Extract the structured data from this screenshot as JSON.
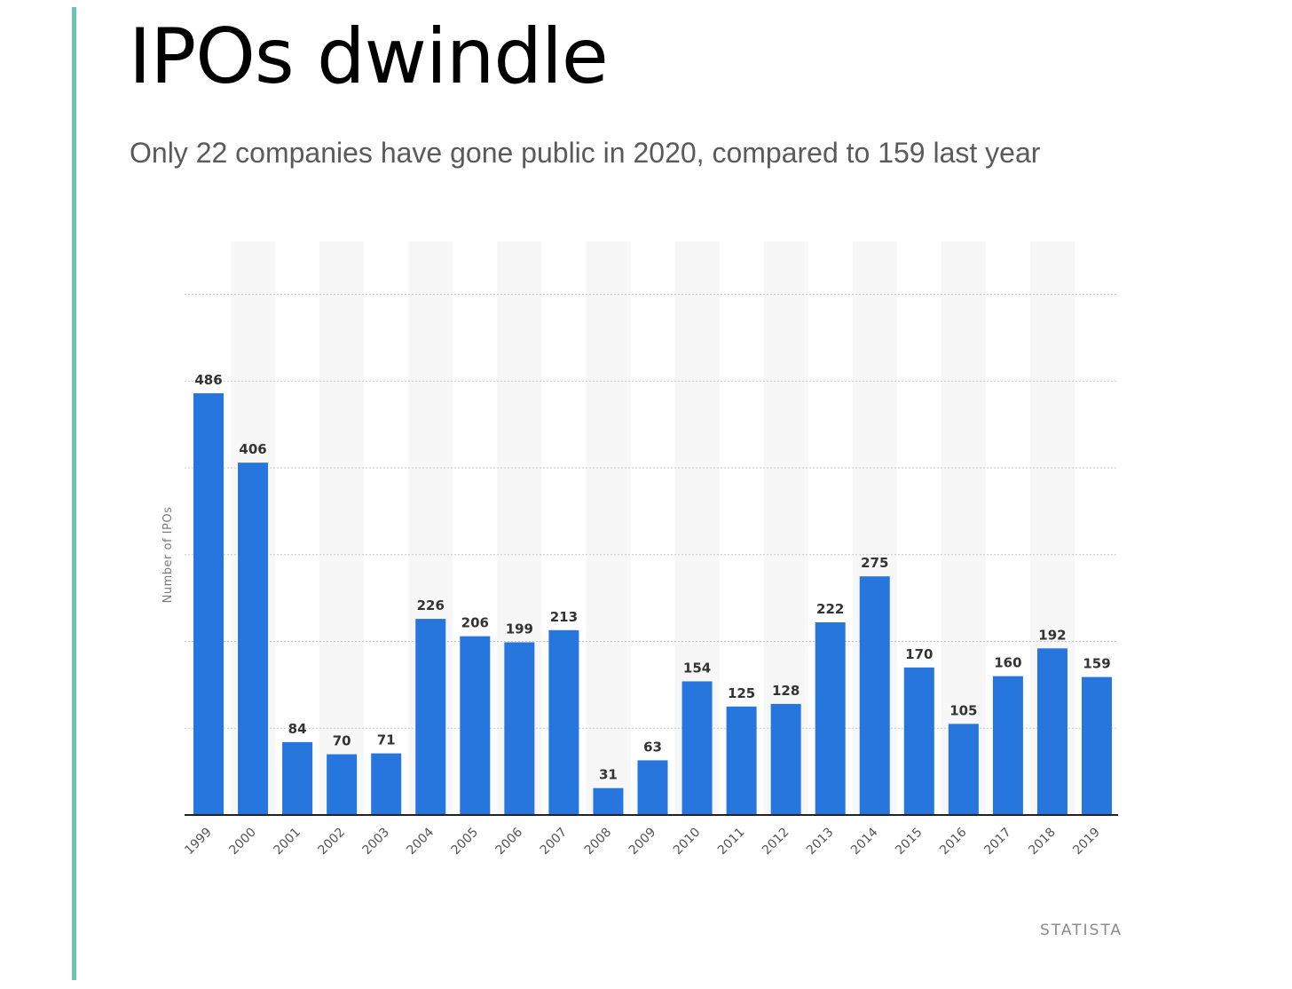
{
  "title": "IPOs dwindle",
  "subtitle": "Only 22 companies have gone public in 2020, compared to 159 last year",
  "source": "STATISTA",
  "colors": {
    "accent": "#6cc5b0",
    "bar": "#2776dd",
    "band": "#f7f7f7",
    "grid": "#c8c8c8",
    "axis": "#222222",
    "label": "#333333"
  },
  "chart_data": {
    "type": "bar",
    "categories": [
      "1999",
      "2000",
      "2001",
      "2002",
      "2003",
      "2004",
      "2005",
      "2006",
      "2007",
      "2008",
      "2009",
      "2010",
      "2011",
      "2012",
      "2013",
      "2014",
      "2015",
      "2016",
      "2017",
      "2018",
      "2019"
    ],
    "series": [
      {
        "values": [
          486,
          406,
          84,
          70,
          71,
          226,
          206,
          199,
          213,
          31,
          63,
          154,
          125,
          128,
          222,
          275,
          170,
          105,
          160,
          192,
          159
        ]
      }
    ],
    "title": "",
    "xlabel": "",
    "ylabel": "Number of IPOs",
    "ylim": [
      0,
      600
    ],
    "grid": true,
    "show_data_labels": true,
    "y_tick_labels_visible": false
  }
}
